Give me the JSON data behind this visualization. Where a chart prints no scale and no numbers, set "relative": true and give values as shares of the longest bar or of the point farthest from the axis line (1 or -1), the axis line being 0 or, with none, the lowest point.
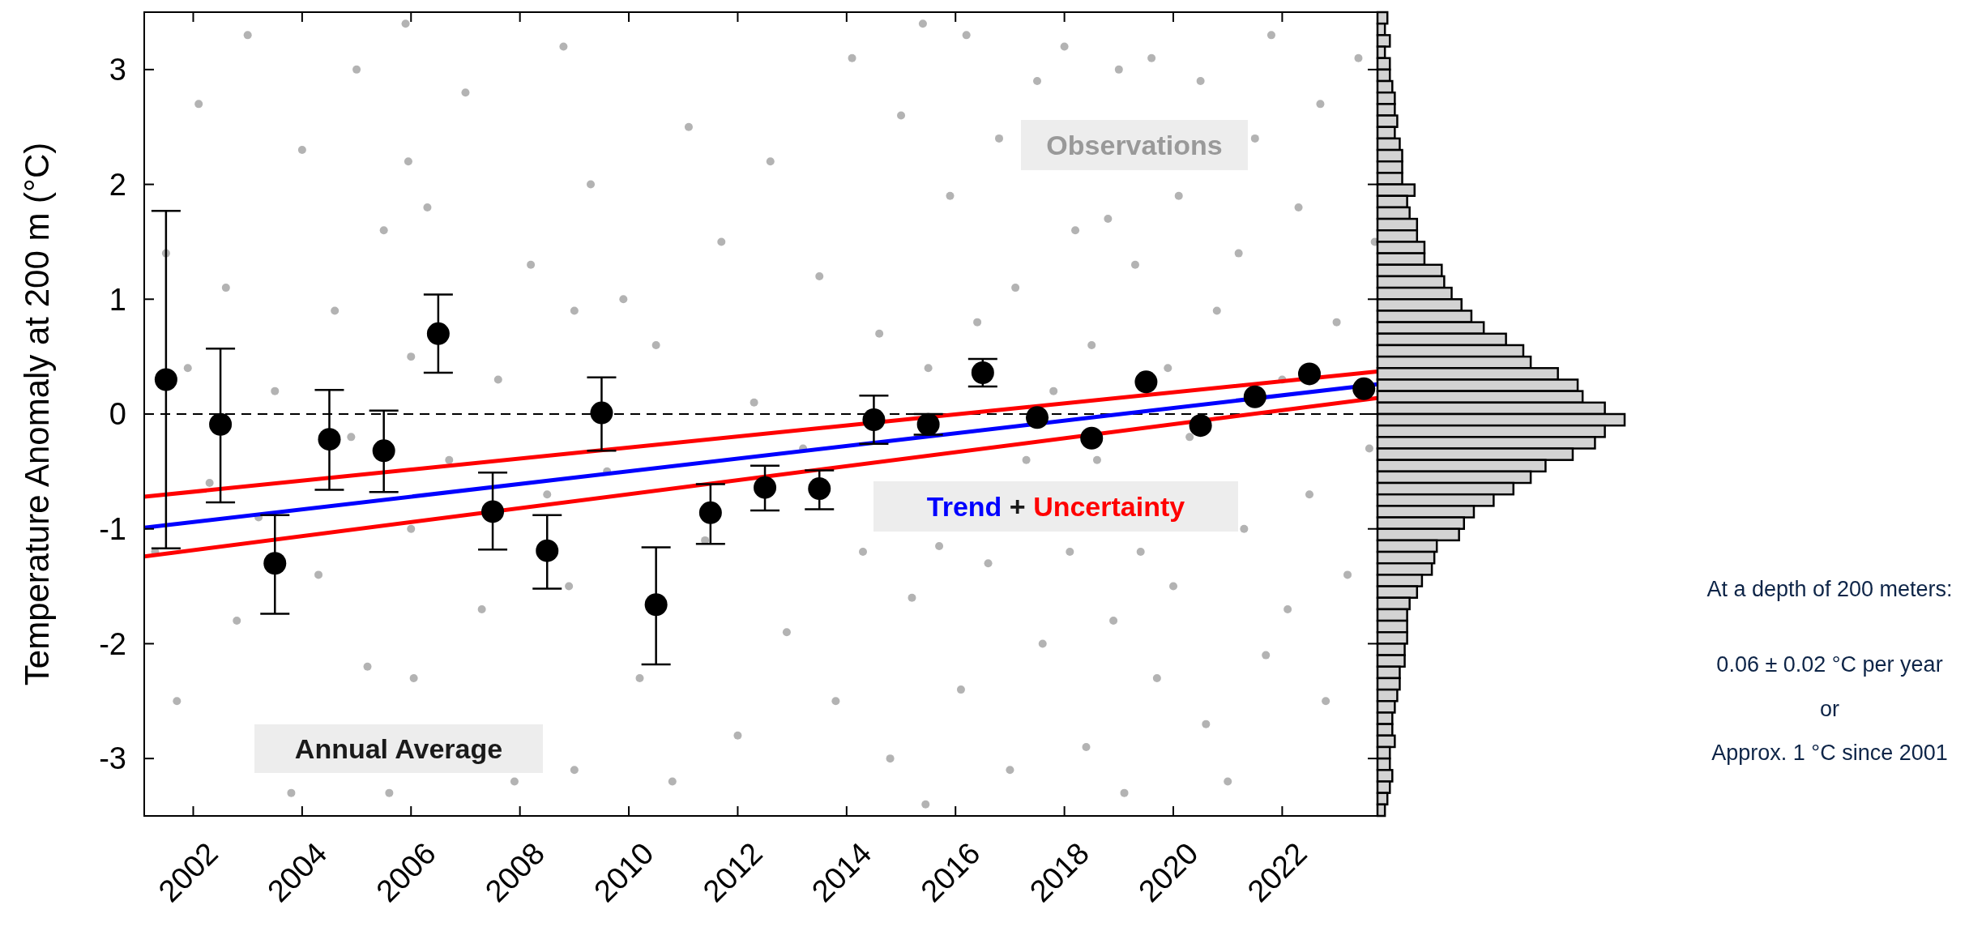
{
  "chart_data": [
    {
      "type": "scatter",
      "ylabel": "Temperature Anomaly at 200 m (°C)",
      "xlim": [
        2001.1,
        2023.75
      ],
      "xticks": [
        2002,
        2004,
        2006,
        2008,
        2010,
        2012,
        2014,
        2016,
        2018,
        2020,
        2022
      ],
      "ylim": [
        -3.5,
        3.5
      ],
      "yticks": [
        -3,
        -2,
        -1,
        0,
        1,
        2,
        3
      ],
      "marker": "circle",
      "grid": false,
      "legend": false,
      "ref_lines": [
        {
          "axis": "y",
          "value": 0,
          "color": "#000000",
          "line_style": "dashed"
        }
      ],
      "annotations": [
        "+",
        "At a depth of 200 meters:",
        "0.06 ± 0.02 °C per year",
        "or",
        "Approx. 1 °C since 2001"
      ],
      "series": [
        {
          "name": "Observations",
          "type": "scatter",
          "color": "#b3b3b3",
          "x": [
            2001.3,
            2001.5,
            2001.7,
            2001.9,
            2002.1,
            2002.3,
            2002.6,
            2002.8,
            2003.0,
            2003.2,
            2003.5,
            2003.8,
            2004.0,
            2004.3,
            2004.6,
            2004.9,
            2005.0,
            2005.2,
            2005.5,
            2005.6,
            2005.9,
            2005.95,
            2006.0,
            2006.0,
            2006.05,
            2006.3,
            2006.7,
            2007.0,
            2007.3,
            2007.6,
            2007.9,
            2008.2,
            2008.5,
            2008.8,
            2008.9,
            2009.0,
            2009.0,
            2009.3,
            2009.6,
            2009.9,
            2010.2,
            2010.5,
            2010.8,
            2011.1,
            2011.4,
            2011.7,
            2012.0,
            2012.3,
            2012.6,
            2012.9,
            2013.2,
            2013.5,
            2013.8,
            2014.1,
            2014.3,
            2014.6,
            2014.8,
            2015.0,
            2015.2,
            2015.4,
            2015.45,
            2015.5,
            2015.7,
            2015.9,
            2016.1,
            2016.2,
            2016.4,
            2016.6,
            2016.8,
            2017.0,
            2017.1,
            2017.3,
            2017.5,
            2017.6,
            2017.8,
            2018.0,
            2018.1,
            2018.2,
            2018.4,
            2018.5,
            2018.6,
            2018.8,
            2018.9,
            2019.0,
            2019.1,
            2019.3,
            2019.4,
            2019.6,
            2019.7,
            2019.9,
            2020.0,
            2020.1,
            2020.3,
            2020.5,
            2020.6,
            2020.8,
            2021.0,
            2021.2,
            2021.3,
            2021.5,
            2021.7,
            2021.8,
            2022.0,
            2022.1,
            2022.3,
            2022.5,
            2022.7,
            2022.8,
            2023.0,
            2023.2,
            2023.4,
            2023.6,
            2023.7
          ],
          "values": [
            -1.2,
            1.4,
            -2.5,
            0.4,
            2.7,
            -0.6,
            1.1,
            -1.8,
            3.3,
            -0.9,
            0.2,
            -3.3,
            2.3,
            -1.4,
            0.9,
            -0.2,
            3.0,
            -2.2,
            1.6,
            -3.3,
            3.4,
            2.2,
            -1.0,
            0.5,
            -2.3,
            1.8,
            -0.4,
            2.8,
            -1.7,
            0.3,
            -3.2,
            1.3,
            -0.7,
            3.2,
            -1.5,
            0.9,
            -3.1,
            2.0,
            -0.5,
            1.0,
            -2.3,
            0.6,
            -3.2,
            2.5,
            -1.1,
            1.5,
            -2.8,
            0.1,
            2.2,
            -1.9,
            -0.3,
            1.2,
            -2.5,
            3.1,
            -1.2,
            0.7,
            -3.0,
            2.6,
            -1.6,
            3.4,
            -3.4,
            0.4,
            -1.15,
            1.9,
            -2.4,
            3.3,
            0.8,
            -1.3,
            2.4,
            -3.1,
            1.1,
            -0.4,
            2.9,
            -2.0,
            0.2,
            3.2,
            -1.2,
            1.6,
            -2.9,
            0.6,
            -0.4,
            1.7,
            -1.8,
            3.0,
            -3.3,
            1.3,
            -1.2,
            3.1,
            -2.3,
            0.4,
            -1.5,
            1.9,
            -0.2,
            2.9,
            -2.7,
            0.9,
            -3.2,
            1.4,
            -1.0,
            2.4,
            -2.1,
            3.3,
            0.3,
            -1.7,
            1.8,
            -0.7,
            2.7,
            -2.5,
            0.8,
            -1.4,
            3.1,
            -0.3,
            1.5
          ]
        },
        {
          "name": "Annual Average",
          "type": "scatter",
          "color": "#000000",
          "x": [
            2001.5,
            2002.5,
            2003.5,
            2004.5,
            2005.5,
            2006.5,
            2007.5,
            2008.5,
            2009.5,
            2010.5,
            2011.5,
            2012.5,
            2013.5,
            2014.5,
            2015.5,
            2016.5,
            2017.5,
            2018.5,
            2019.5,
            2020.5,
            2021.5,
            2022.5,
            2023.5
          ],
          "values": [
            0.3,
            -0.09,
            -1.3,
            -0.22,
            -0.32,
            0.7,
            -0.85,
            -1.19,
            0.01,
            -1.66,
            -0.86,
            -0.64,
            -0.65,
            -0.05,
            -0.09,
            0.36,
            -0.03,
            -0.21,
            0.28,
            -0.1,
            0.15,
            0.35,
            0.22
          ],
          "errors": [
            [
              -1.17,
              1.77
            ],
            [
              -0.77,
              0.57
            ],
            [
              -1.74,
              -0.88
            ],
            [
              -0.66,
              0.21
            ],
            [
              -0.68,
              0.03
            ],
            [
              0.36,
              1.04
            ],
            [
              -1.18,
              -0.51
            ],
            [
              -1.52,
              -0.88
            ],
            [
              -0.32,
              0.32
            ],
            [
              -2.18,
              -1.16
            ],
            [
              -1.13,
              -0.61
            ],
            [
              -0.84,
              -0.45
            ],
            [
              -0.83,
              -0.49
            ],
            [
              -0.26,
              0.16
            ],
            [
              -0.18,
              0.0
            ],
            [
              0.24,
              0.48
            ],
            null,
            null,
            null,
            null,
            null,
            null,
            null
          ]
        },
        {
          "name": "Trend",
          "type": "line",
          "marker": "none",
          "color": "#0000ff",
          "x": [
            2001.1,
            2023.75
          ],
          "values": [
            -0.99,
            0.26
          ]
        },
        {
          "name": "Uncertainty",
          "type": "line",
          "marker": "none",
          "color": "#ff0000",
          "x": [
            2001.1,
            2023.75
          ],
          "values": [
            -0.72,
            0.37
          ]
        },
        {
          "type": "line",
          "marker": "none",
          "color": "#ff0000",
          "x": [
            2001.1,
            2023.75
          ],
          "values": [
            -1.24,
            0.14
          ]
        }
      ]
    },
    {
      "type": "bar",
      "orientation": "horizontal",
      "relative": true,
      "color": "#d3d3d3",
      "categories": [
        null,
        null,
        null,
        null,
        null,
        null,
        null,
        null,
        null,
        null,
        null,
        null,
        null,
        null,
        null,
        null,
        null,
        null,
        null,
        null,
        null,
        null,
        null,
        null,
        null,
        null,
        null,
        null,
        null,
        null,
        null,
        null,
        null,
        null,
        null,
        null,
        null,
        null,
        null,
        null,
        null,
        null,
        null,
        null,
        null,
        null,
        null,
        null,
        null,
        null,
        null,
        null,
        null,
        null,
        null,
        null,
        null,
        null,
        null,
        null,
        null,
        null,
        null,
        null,
        null,
        null,
        null,
        null,
        null,
        null
      ],
      "values": [
        0.04,
        0.03,
        0.05,
        0.03,
        0.05,
        0.05,
        0.06,
        0.07,
        0.07,
        0.08,
        0.07,
        0.09,
        0.1,
        0.1,
        0.1,
        0.15,
        0.12,
        0.13,
        0.16,
        0.16,
        0.19,
        0.19,
        0.26,
        0.27,
        0.3,
        0.34,
        0.38,
        0.43,
        0.52,
        0.59,
        0.62,
        0.73,
        0.81,
        0.83,
        0.92,
        1,
        0.92,
        0.88,
        0.79,
        0.68,
        0.62,
        0.55,
        0.47,
        0.39,
        0.35,
        0.33,
        0.24,
        0.23,
        0.22,
        0.18,
        0.16,
        0.13,
        0.12,
        0.12,
        0.12,
        0.11,
        0.11,
        0.09,
        0.09,
        0.08,
        0.07,
        0.06,
        0.06,
        0.07,
        0.05,
        0.05,
        0.06,
        0.05,
        0.04,
        0.03
      ]
    }
  ]
}
